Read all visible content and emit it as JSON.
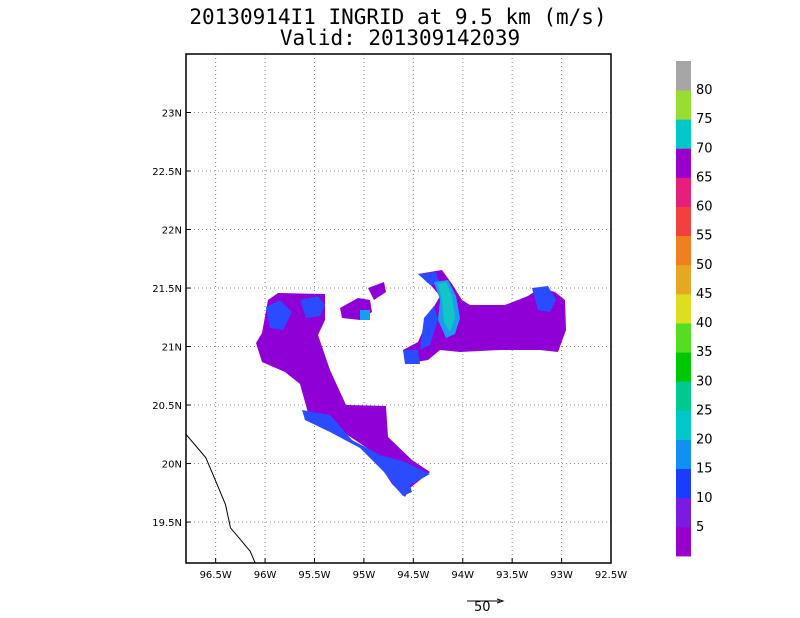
{
  "title": {
    "line1": "20130914I1 INGRID at 9.5 km (m/s)",
    "line2": "Valid: 201309142039"
  },
  "map": {
    "lon_range": [
      -96.8,
      -92.5
    ],
    "lat_range": [
      19.15,
      23.5
    ],
    "x_ticks": [
      {
        "value": -96.5,
        "label": "96.5W"
      },
      {
        "value": -96.0,
        "label": "96W"
      },
      {
        "value": -95.5,
        "label": "95.5W"
      },
      {
        "value": -95.0,
        "label": "95W"
      },
      {
        "value": -94.5,
        "label": "94.5W"
      },
      {
        "value": -94.0,
        "label": "94W"
      },
      {
        "value": -93.5,
        "label": "93.5W"
      },
      {
        "value": -93.0,
        "label": "93W"
      },
      {
        "value": -92.5,
        "label": "92.5W"
      }
    ],
    "y_ticks": [
      {
        "value": 19.5,
        "label": "19.5N"
      },
      {
        "value": 20.0,
        "label": "20N"
      },
      {
        "value": 20.5,
        "label": "20.5N"
      },
      {
        "value": 21.0,
        "label": "21N"
      },
      {
        "value": 21.5,
        "label": "21.5N"
      },
      {
        "value": 22.0,
        "label": "22N"
      },
      {
        "value": 22.5,
        "label": "22.5N"
      },
      {
        "value": 23.0,
        "label": "23N"
      }
    ],
    "grid": true,
    "coastline": [
      [
        -96.8,
        20.25
      ],
      [
        -96.7,
        20.15
      ],
      [
        -96.6,
        20.05
      ],
      [
        -96.5,
        19.85
      ],
      [
        -96.4,
        19.65
      ],
      [
        -96.35,
        19.45
      ],
      [
        -96.25,
        19.35
      ],
      [
        -96.15,
        19.25
      ],
      [
        -96.1,
        19.15
      ]
    ]
  },
  "colorbar": {
    "labels": [
      "5",
      "10",
      "15",
      "20",
      "25",
      "30",
      "35",
      "40",
      "45",
      "50",
      "55",
      "60",
      "65",
      "70",
      "75",
      "80"
    ],
    "colors": [
      "#9900cc",
      "#7a1be0",
      "#1a3cff",
      "#1090f0",
      "#00c8c8",
      "#00c890",
      "#00c800",
      "#55dd22",
      "#dddd22",
      "#e6a822",
      "#f07f22",
      "#f04040",
      "#e6207a",
      "#9900cc",
      "#00c8c8",
      "#99dd33",
      "#a6a6a6"
    ]
  },
  "wind_scale": {
    "label": "50"
  }
}
